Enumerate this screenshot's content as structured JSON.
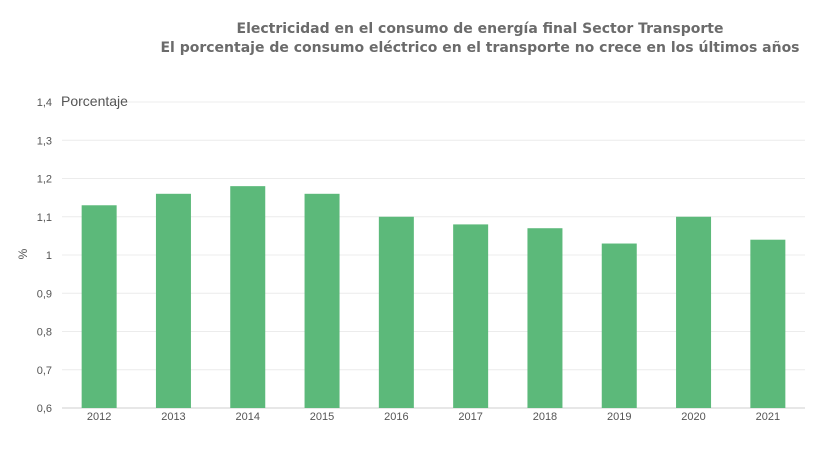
{
  "chart_data": {
    "type": "bar",
    "title": "Electricidad en el consumo de energía final Sector Transporte",
    "subtitle": "El porcentaje de consumo eléctrico en el transporte no crece en los últimos años",
    "ylabel": "%",
    "series_label": "Porcentaje",
    "categories": [
      "2012",
      "2013",
      "2014",
      "2015",
      "2016",
      "2017",
      "2018",
      "2019",
      "2020",
      "2021"
    ],
    "values": [
      1.13,
      1.16,
      1.18,
      1.16,
      1.1,
      1.08,
      1.07,
      1.03,
      1.1,
      1.04
    ],
    "ylim": [
      0.6,
      1.4
    ],
    "yticks": [
      "0,6",
      "0,7",
      "0,8",
      "0,9",
      "1",
      "1,1",
      "1,2",
      "1,3",
      "1,4"
    ],
    "grid": true,
    "bar_color": "#5cb97a"
  }
}
